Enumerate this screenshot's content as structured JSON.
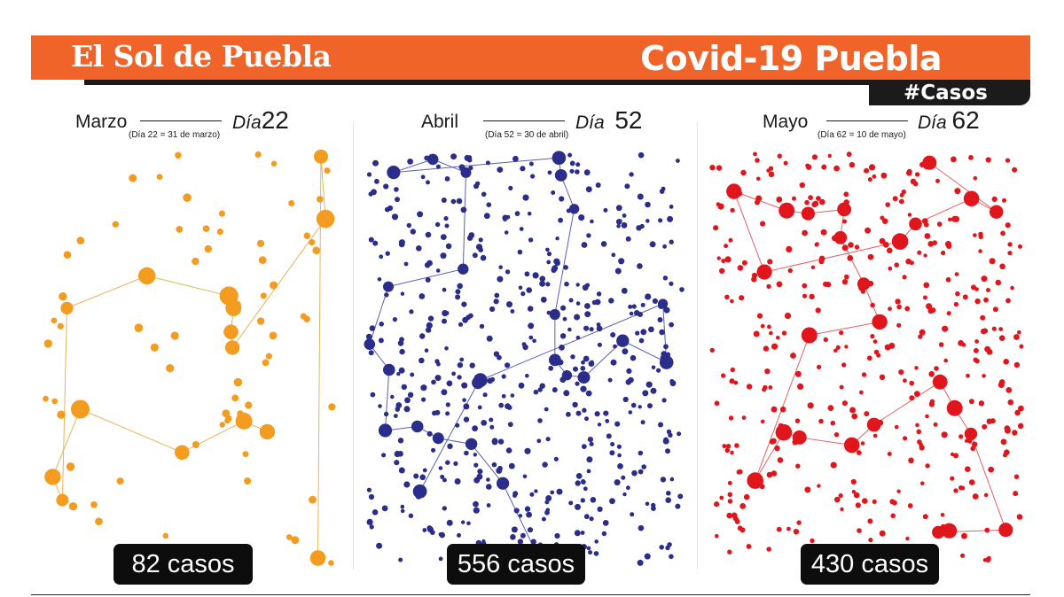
{
  "header": {
    "brand": "El Sol de Puebla",
    "headline": "Covid-19 Puebla",
    "hashtag": "#Casos",
    "colors": {
      "banner": "#f0642a",
      "dark": "#1b1b1b"
    }
  },
  "panels": [
    {
      "month": "Marzo",
      "day_label": "Día",
      "day_number": "22",
      "note": "(Día 22 = 31 de marzo)",
      "cases_label": "82 casos",
      "cases": 82,
      "color": "#f39c1f",
      "line_color": "#e6b358"
    },
    {
      "month": "Abril",
      "day_label": "Día",
      "day_number": "52",
      "note": "(Día 52 = 30 de abril)",
      "cases_label": "556 casos",
      "cases": 556,
      "color": "#2b2d8a",
      "line_color": "#5a5fb3"
    },
    {
      "month": "Mayo",
      "day_label": "Día",
      "day_number": "62",
      "note": "(Día 62 = 10 de mayo)",
      "cases_label": "430 casos",
      "cases": 430,
      "color": "#e0161c",
      "line_color": "#e36064"
    }
  ]
}
